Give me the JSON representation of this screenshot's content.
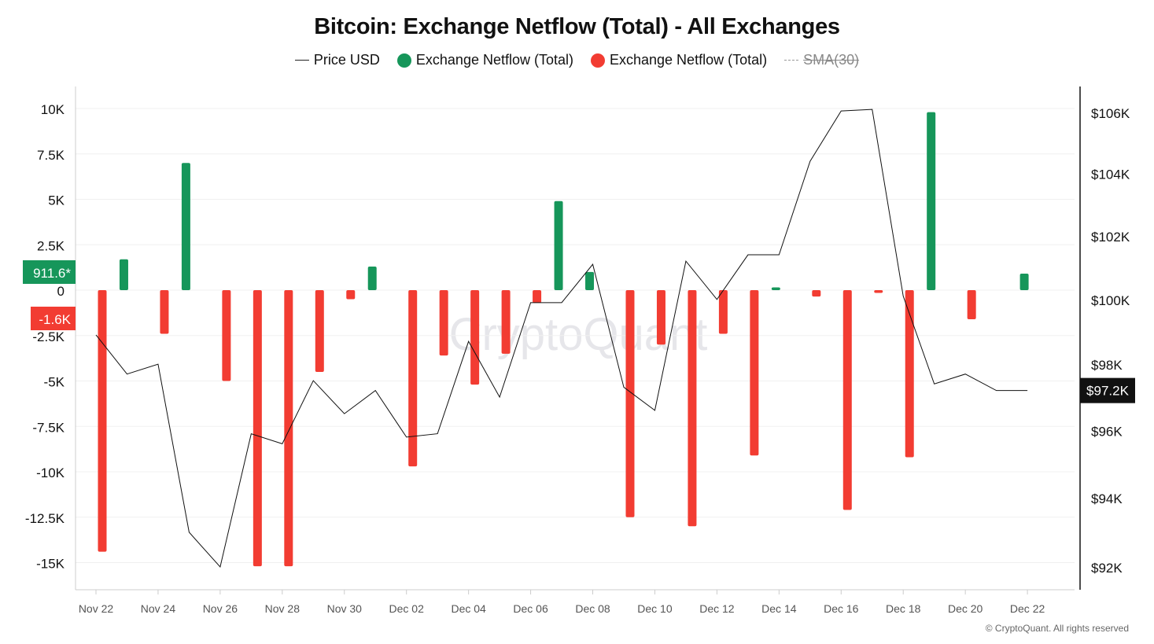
{
  "chart_data": {
    "type": "bar+line",
    "title": "Bitcoin: Exchange Netflow (Total) - All Exchanges",
    "legend": [
      {
        "name": "Price USD",
        "marker": "line",
        "color": "#222222"
      },
      {
        "name": "Exchange Netflow (Total)",
        "marker": "dot",
        "color": "#16965a"
      },
      {
        "name": "Exchange Netflow (Total)",
        "marker": "dot",
        "color": "#f23c32"
      },
      {
        "name": "SMA(30)",
        "marker": "dash",
        "color": "#999999",
        "hidden": true
      }
    ],
    "legend_placement": "top",
    "x_dates": [
      "Nov 22",
      "Nov 23",
      "Nov 24",
      "Nov 25",
      "Nov 26",
      "Nov 27",
      "Nov 28",
      "Nov 29",
      "Nov 30",
      "Dec 01",
      "Dec 02",
      "Dec 03",
      "Dec 04",
      "Dec 05",
      "Dec 06",
      "Dec 07",
      "Dec 08",
      "Dec 09",
      "Dec 10",
      "Dec 11",
      "Dec 12",
      "Dec 13",
      "Dec 14",
      "Dec 15",
      "Dec 16",
      "Dec 17",
      "Dec 18",
      "Dec 19",
      "Dec 20",
      "Dec 21",
      "Dec 22"
    ],
    "x_tick_labels": [
      "Nov 22",
      "Nov 24",
      "Nov 26",
      "Nov 28",
      "Nov 30",
      "Dec 02",
      "Dec 04",
      "Dec 06",
      "Dec 08",
      "Dec 10",
      "Dec 12",
      "Dec 14",
      "Dec 16",
      "Dec 18",
      "Dec 20",
      "Dec 22"
    ],
    "netflow_k": [
      -14.4,
      1.7,
      -2.4,
      7.0,
      -5.0,
      -15.2,
      -15.2,
      -4.5,
      -0.5,
      1.3,
      -9.7,
      -3.6,
      -5.2,
      -3.5,
      -0.7,
      4.9,
      1.0,
      -12.5,
      -3.0,
      -13.0,
      -2.4,
      -9.1,
      0.15,
      -0.35,
      -12.1,
      -0.15,
      -9.2,
      9.8,
      -1.6,
      null,
      0.9116
    ],
    "price_usd_k": [
      98.9,
      97.7,
      98.0,
      93.0,
      92.0,
      95.9,
      95.6,
      97.5,
      96.5,
      97.2,
      95.8,
      95.9,
      98.7,
      97.0,
      99.9,
      99.9,
      101.1,
      97.3,
      96.6,
      101.2,
      100.0,
      101.4,
      101.4,
      104.4,
      106.05,
      106.1,
      100.1,
      97.4,
      97.7,
      97.2,
      97.2
    ],
    "left_axis": {
      "ylim_k": [
        -16,
        10.5
      ],
      "ticks": [
        10,
        7.5,
        5,
        2.5,
        0,
        -2.5,
        -5,
        -7.5,
        -10,
        -12.5,
        -15
      ],
      "tick_labels": [
        "10K",
        "7.5K",
        "5K",
        "2.5K",
        "0",
        "-2.5K",
        "-5K",
        "-7.5K",
        "-10K",
        "-12.5K",
        "-15K"
      ]
    },
    "right_axis": {
      "scale": "log",
      "ylim_k": [
        92,
        106
      ],
      "ticks": [
        106,
        104,
        102,
        100,
        98,
        96,
        94,
        92
      ],
      "tick_labels": [
        "$106K",
        "$104K",
        "$102K",
        "$100K",
        "$98K",
        "$96K",
        "$94K",
        "$92K"
      ]
    },
    "flags": {
      "latest_inflow": "911.6*",
      "latest_outflow": "-1.6K",
      "latest_price": "$97.2K"
    },
    "grid": "horizontal",
    "watermark": "CryptoQuant"
  },
  "copyright": "© CryptoQuant. All rights reserved"
}
